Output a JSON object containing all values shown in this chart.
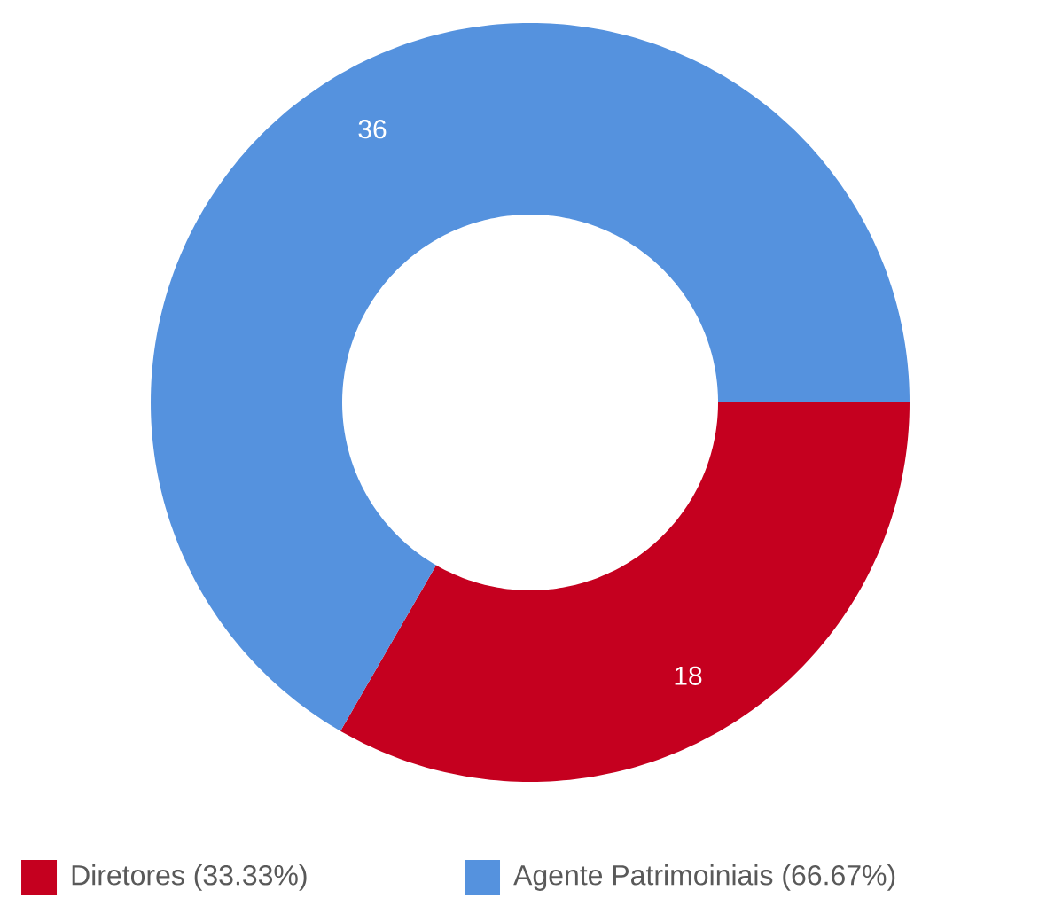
{
  "chart_data": {
    "type": "donut",
    "categories": [
      "Diretores (33.33%)",
      "Agente Patrimoiniais (66.67%)"
    ],
    "values": [
      18,
      36
    ],
    "colors": [
      "#c5001f",
      "#5592de"
    ],
    "data_labels": true,
    "legend": "bottom"
  }
}
